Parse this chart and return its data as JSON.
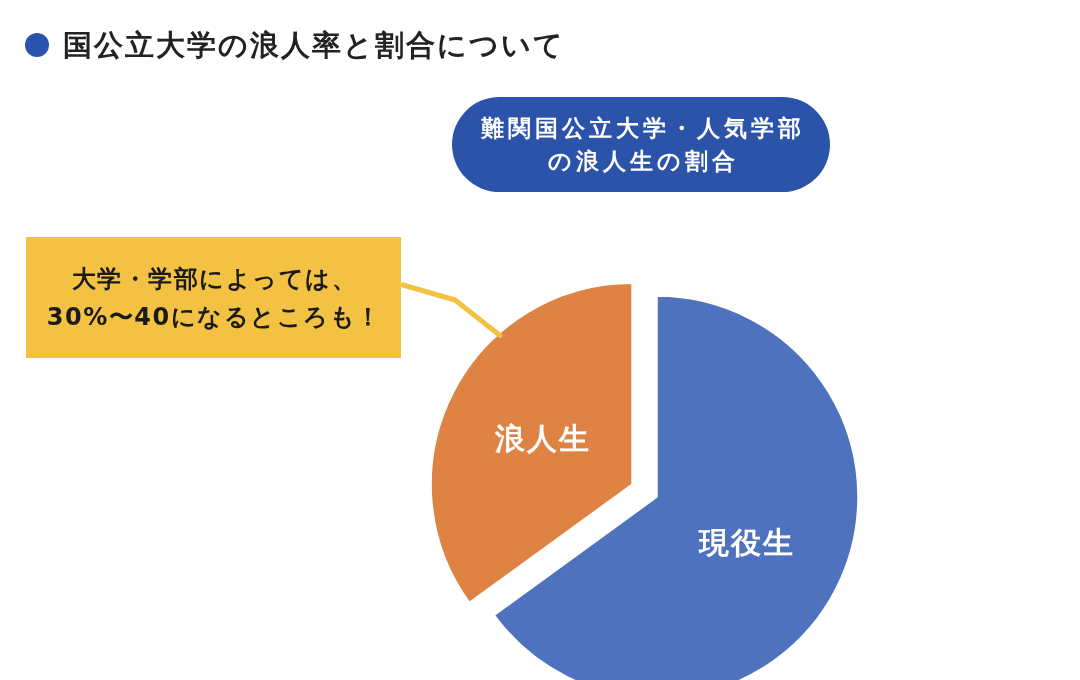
{
  "chart_data": {
    "type": "pie",
    "title": "国公立大学の浪人率と割合について",
    "subtitle": "難関国公立大学・人気学部の浪人生の割合",
    "categories": [
      "現役生",
      "浪人生"
    ],
    "values": [
      65,
      35
    ],
    "colors": [
      "#4f72be",
      "#de8344"
    ],
    "annotations": [
      "大学・学部によっては、30%〜40になるところも！"
    ]
  }
}
